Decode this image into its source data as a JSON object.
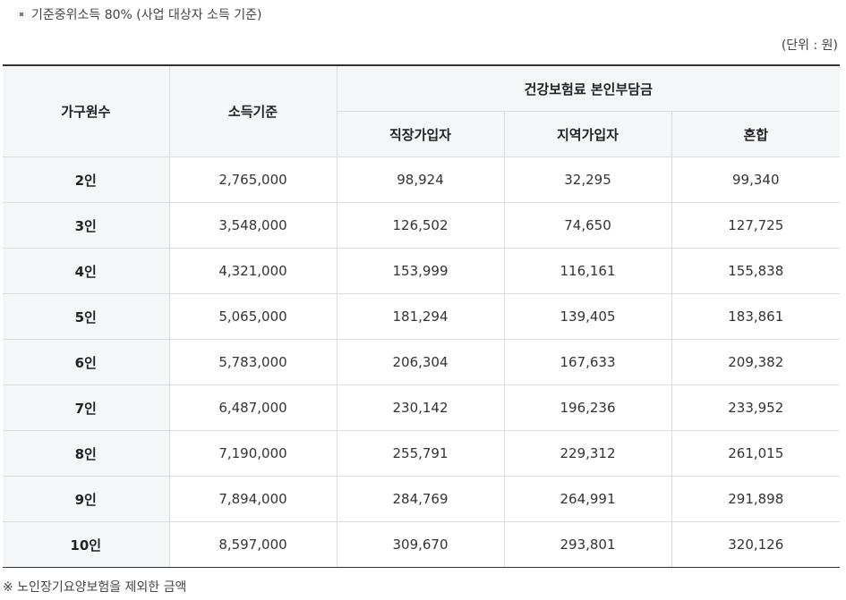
{
  "criteria_note": "기준중위소득 80% (사업 대상자 소득 기준)",
  "unit_label": "(단위 : 원)",
  "table": {
    "headers": {
      "household": "가구원수",
      "income": "소득기준",
      "premium_group": "건강보험료 본인부담금",
      "employee": "직장가입자",
      "regional": "지역가입자",
      "mixed": "혼합"
    },
    "rows": [
      {
        "household": "2인",
        "income": "2,765,000",
        "employee": "98,924",
        "regional": "32,295",
        "mixed": "99,340"
      },
      {
        "household": "3인",
        "income": "3,548,000",
        "employee": "126,502",
        "regional": "74,650",
        "mixed": "127,725"
      },
      {
        "household": "4인",
        "income": "4,321,000",
        "employee": "153,999",
        "regional": "116,161",
        "mixed": "155,838"
      },
      {
        "household": "5인",
        "income": "5,065,000",
        "employee": "181,294",
        "regional": "139,405",
        "mixed": "183,861"
      },
      {
        "household": "6인",
        "income": "5,783,000",
        "employee": "206,304",
        "regional": "167,633",
        "mixed": "209,382"
      },
      {
        "household": "7인",
        "income": "6,487,000",
        "employee": "230,142",
        "regional": "196,236",
        "mixed": "233,952"
      },
      {
        "household": "8인",
        "income": "7,190,000",
        "employee": "255,791",
        "regional": "229,312",
        "mixed": "261,015"
      },
      {
        "household": "9인",
        "income": "7,894,000",
        "employee": "284,769",
        "regional": "264,991",
        "mixed": "291,898"
      },
      {
        "household": "10인",
        "income": "8,597,000",
        "employee": "309,670",
        "regional": "293,801",
        "mixed": "320,126"
      }
    ]
  },
  "footnote": "※ 노인장기요양보험을 제외한 금액"
}
